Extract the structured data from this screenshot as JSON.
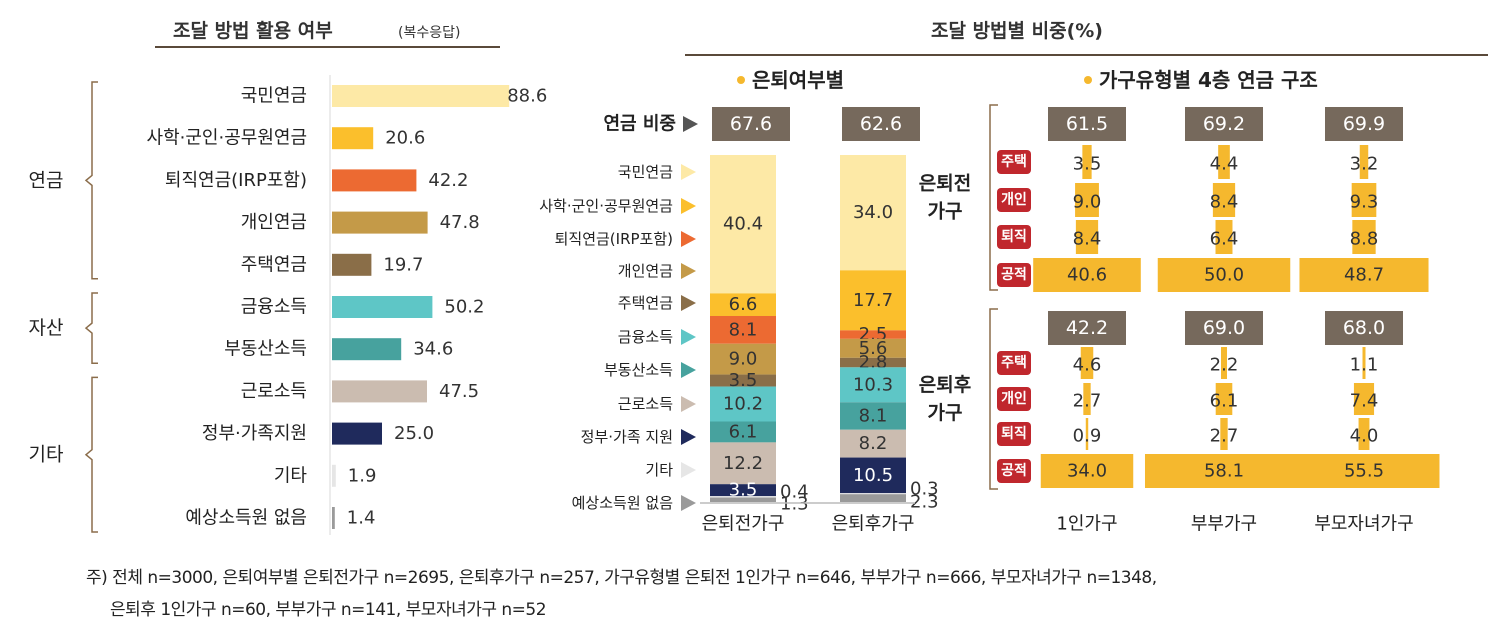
{
  "colors": {
    "accent": "#f5b82e",
    "title_line": "#5a4a3a",
    "box": "#76695c",
    "badge": "#c0272d",
    "bracket": "#8b6d4b",
    "categories": [
      "#fde9a6",
      "#fbbf2c",
      "#ec6a32",
      "#c49a48",
      "#8a6e48",
      "#5ec6c6",
      "#47a29e",
      "#cbbcb0",
      "#1f2a5c",
      "#e6e6e6",
      "#9a9a9a"
    ]
  },
  "chart_data": [
    {
      "type": "bar",
      "orientation": "horizontal",
      "title": "조달 방법 활용 여부",
      "subtitle": "(복수응답)",
      "groups": [
        {
          "label": "연금",
          "members": [
            "국민연금",
            "사학·군인·공무원연금",
            "퇴직연금(IRP포함)",
            "개인연금",
            "주택연금"
          ]
        },
        {
          "label": "자산",
          "members": [
            "금융소득",
            "부동산소득"
          ]
        },
        {
          "label": "기타",
          "members": [
            "근로소득",
            "정부·가족지원",
            "기타",
            "예상소득원 없음"
          ]
        }
      ],
      "categories": [
        "국민연금",
        "사학·군인·공무원연금",
        "퇴직연금(IRP포함)",
        "개인연금",
        "주택연금",
        "금융소득",
        "부동산소득",
        "근로소득",
        "정부·가족지원",
        "기타",
        "예상소득원 없음"
      ],
      "values": [
        88.6,
        20.6,
        42.2,
        47.8,
        19.7,
        50.2,
        34.6,
        47.5,
        25.0,
        1.9,
        1.4
      ],
      "value_labels": [
        "88.6",
        "20.6",
        "42.2",
        "47.8",
        "19.7",
        "50.2",
        "34.6",
        "47.5",
        "25.0",
        "1.9",
        "1.4"
      ],
      "xlim": [
        0,
        100
      ]
    },
    {
      "type": "bar",
      "stacked": true,
      "title": "조달 방법별 비중(%)",
      "section": "은퇴여부별",
      "pension_share_label": "연금 비중",
      "legend": [
        "국민연금",
        "사학·군인·공무원연금",
        "퇴직연금(IRP포함)",
        "개인연금",
        "주택연금",
        "금융소득",
        "부동산소득",
        "근로소득",
        "정부·가족 지원",
        "기타",
        "예상소득원 없음"
      ],
      "categories": [
        "은퇴전가구",
        "은퇴후가구"
      ],
      "pension_share": [
        "67.6",
        "62.6"
      ],
      "series": [
        {
          "values": [
            40.4,
            34.0
          ],
          "labels": [
            "40.4",
            "34.0"
          ]
        },
        {
          "values": [
            6.6,
            17.7
          ],
          "labels": [
            "6.6",
            "17.7"
          ]
        },
        {
          "values": [
            8.1,
            2.5
          ],
          "labels": [
            "8.1",
            "2.5"
          ]
        },
        {
          "values": [
            9.0,
            5.6
          ],
          "labels": [
            "9.0",
            "5.6"
          ]
        },
        {
          "values": [
            3.5,
            2.8
          ],
          "labels": [
            "3.5",
            "2.8"
          ]
        },
        {
          "values": [
            10.2,
            10.3
          ],
          "labels": [
            "10.2",
            "10.3"
          ]
        },
        {
          "values": [
            6.1,
            8.1
          ],
          "labels": [
            "6.1",
            "8.1"
          ]
        },
        {
          "values": [
            12.2,
            8.2
          ],
          "labels": [
            "12.2",
            "8.2"
          ]
        },
        {
          "values": [
            3.5,
            10.5
          ],
          "labels": [
            "3.5",
            "10.5"
          ]
        },
        {
          "values": [
            0.4,
            0.3
          ],
          "labels": [
            "0.4",
            "0.3"
          ]
        },
        {
          "values": [
            1.3,
            2.3
          ],
          "labels": [
            "1.3",
            "2.3"
          ]
        }
      ],
      "ylim": [
        0,
        100
      ]
    },
    {
      "type": "bar",
      "title": "가구유형별 4층 연금 구조",
      "categories": [
        "1인가구",
        "부부가구",
        "부모자녀가구"
      ],
      "layers": [
        "주택",
        "개인",
        "퇴직",
        "공적"
      ],
      "panels": [
        {
          "label": "은퇴전 가구",
          "label_lines": [
            "은퇴전",
            "가구"
          ],
          "totals": [
            "61.5",
            "69.2",
            "69.9"
          ],
          "values": [
            [
              3.5,
              4.4,
              3.2
            ],
            [
              9.0,
              8.4,
              9.3
            ],
            [
              8.4,
              6.4,
              8.8
            ],
            [
              40.6,
              50.0,
              48.7
            ]
          ],
          "labels": [
            [
              "3.5",
              "4.4",
              "3.2"
            ],
            [
              "9.0",
              "8.4",
              "9.3"
            ],
            [
              "8.4",
              "6.4",
              "8.8"
            ],
            [
              "40.6",
              "50.0",
              "48.7"
            ]
          ]
        },
        {
          "label": "은퇴후 가구",
          "label_lines": [
            "은퇴후",
            "가구"
          ],
          "totals": [
            "42.2",
            "69.0",
            "68.0"
          ],
          "values": [
            [
              4.6,
              2.2,
              1.1
            ],
            [
              2.7,
              6.1,
              7.4
            ],
            [
              0.9,
              2.7,
              4.0
            ],
            [
              34.0,
              58.1,
              55.5
            ]
          ],
          "labels": [
            [
              "4.6",
              "2.2",
              "1.1"
            ],
            [
              "2.7",
              "6.1",
              "7.4"
            ],
            [
              "0.9",
              "2.7",
              "4.0"
            ],
            [
              "34.0",
              "58.1",
              "55.5"
            ]
          ]
        }
      ]
    }
  ],
  "footnote": {
    "line1": "주) 전체 n=3000, 은퇴여부별 은퇴전가구 n=2695, 은퇴후가구 n=257, 가구유형별 은퇴전 1인가구 n=646, 부부가구 n=666, 부모자녀가구 n=1348,",
    "line2": "은퇴후 1인가구 n=60, 부부가구 n=141, 부모자녀가구 n=52"
  }
}
